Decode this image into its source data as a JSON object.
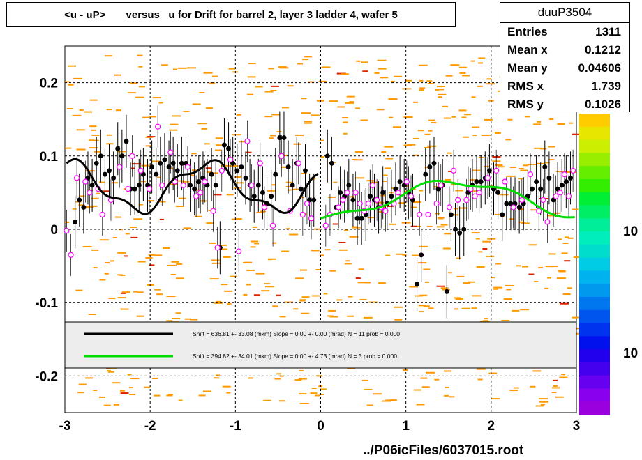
{
  "title": "<u - uP>       versus   u for Drift for barrel 2, layer 3 ladder 4, wafer 5",
  "stats": {
    "name": "duuP3504",
    "rows": [
      {
        "label": "Entries",
        "value": "1311"
      },
      {
        "label": "Mean x",
        "value": "0.1212"
      },
      {
        "label": "Mean y",
        "value": "0.04606"
      },
      {
        "label": "RMS x",
        "value": "1.739"
      },
      {
        "label": "RMS y",
        "value": "0.1026"
      }
    ]
  },
  "footer": "../P06icFiles/6037015.root",
  "legend": [
    {
      "color": "#000000",
      "text": "Shift =   636.81 +- 33.08 (mkm) Slope =     0.00 +- 0.00 (mrad)  N = 11 prob = 0.000"
    },
    {
      "color": "#00dd00",
      "text": "Shift =   394.82 +- 34.01 (mkm) Slope =     0.00 +- 4.73 (mrad)  N = 3 prob = 0.000"
    }
  ],
  "palette_labels": [
    "10",
    "10"
  ],
  "colors": {
    "hist": "#ff9900",
    "profile": "#000000",
    "profile_open": "#ff00ff",
    "fit1": "#000000",
    "fit2": "#00dd00"
  },
  "chart_data": {
    "type": "scatter",
    "xlim": [
      -3,
      3
    ],
    "ylim": [
      -0.25,
      0.25
    ],
    "x_ticks": [
      -3,
      -2,
      -1,
      0,
      1,
      2,
      3
    ],
    "y_ticks": [
      -0.2,
      -0.1,
      0,
      0.1,
      0.2
    ],
    "grid": true,
    "series": [
      {
        "marker": "filled-circle",
        "x": [
          -2.88,
          -2.83,
          -2.78,
          -2.73,
          -2.68,
          -2.63,
          -2.58,
          -2.53,
          -2.48,
          -2.43,
          -2.38,
          -2.33,
          -2.28,
          -2.23,
          -2.18,
          -2.13,
          -2.08,
          -2.03,
          -1.98,
          -1.93,
          -1.88,
          -1.83,
          -1.78,
          -1.73,
          -1.68,
          -1.63,
          -1.58,
          -1.53,
          -1.48,
          -1.43,
          -1.38,
          -1.33,
          -1.28,
          -1.23,
          -1.18,
          -1.13,
          -1.08,
          -1.03,
          -0.98,
          -0.93,
          -0.88,
          -0.83,
          -0.78,
          -0.73,
          -0.68,
          -0.63,
          -0.58,
          -0.53,
          -0.48,
          -0.43,
          -0.38,
          -0.33,
          -0.28,
          -0.23,
          -0.18,
          -0.13,
          -0.08,
          0.08,
          0.13,
          0.18,
          0.23,
          0.28,
          0.33,
          0.38,
          0.43,
          0.48,
          0.53,
          0.58,
          0.63,
          0.68,
          0.73,
          0.78,
          0.83,
          0.88,
          0.93,
          0.98,
          1.03,
          1.08,
          1.13,
          1.18,
          1.23,
          1.28,
          1.33,
          1.38,
          1.43,
          1.48,
          1.53,
          1.58,
          1.63,
          1.68,
          1.73,
          1.78,
          1.83,
          1.88,
          1.93,
          1.98,
          2.03,
          2.08,
          2.13,
          2.18,
          2.23,
          2.28,
          2.33,
          2.38,
          2.43,
          2.48,
          2.53,
          2.58,
          2.63,
          2.68,
          2.73,
          2.78,
          2.83,
          2.88,
          2.93
        ],
        "y": [
          0.01,
          0.04,
          0.03,
          0.07,
          0.06,
          0.09,
          0.1,
          0.075,
          0.08,
          0.07,
          0.11,
          0.1,
          0.12,
          0.055,
          0.055,
          0.06,
          0.075,
          0.06,
          0.085,
          0.075,
          0.09,
          0.095,
          0.085,
          0.09,
          0.08,
          0.09,
          0.09,
          0.06,
          0.055,
          0.065,
          0.07,
          0.06,
          0.075,
          0.06,
          -0.025,
          0.115,
          0.11,
          0.09,
          0.08,
          0.085,
          0.07,
          0.06,
          0.045,
          0.06,
          0.05,
          0.035,
          0.045,
          0.075,
          0.125,
          0.125,
          0.085,
          0.06,
          0.09,
          0.055,
          0.08,
          0.04,
          0.04,
          0.1,
          0.09,
          0.03,
          0.05,
          0.045,
          0.06,
          0.04,
          0.015,
          0.015,
          0.02,
          0.045,
          0.04,
          0.03,
          0.05,
          0.035,
          0.045,
          0.055,
          0.065,
          0.06,
          0.05,
          0.04,
          -0.075,
          -0.035,
          0.075,
          0.085,
          0.09,
          0.055,
          0.06,
          -0.085,
          0.02,
          0.0,
          -0.005,
          0.0,
          0.05,
          0.06,
          0.065,
          0.065,
          0.07,
          0.08,
          0.055,
          0.05,
          0.02,
          0.035,
          0.035,
          0.035,
          0.03,
          0.035,
          0.045,
          0.055,
          0.065,
          0.055,
          0.085,
          0.07,
          0.04,
          0.055,
          0.06,
          0.065,
          0.07
        ]
      },
      {
        "marker": "open-circle",
        "x": [
          -2.98,
          -2.93,
          -2.86,
          -2.76,
          -2.71,
          -2.61,
          -2.56,
          -2.46,
          -2.36,
          -2.26,
          -2.21,
          -2.11,
          -2.01,
          -1.91,
          -1.86,
          -1.76,
          -1.71,
          -1.61,
          -1.56,
          -1.46,
          -1.41,
          -1.36,
          -1.26,
          -1.21,
          -1.16,
          -1.06,
          -0.96,
          -0.86,
          -0.81,
          -0.71,
          -0.66,
          -0.56,
          -0.46,
          -0.36,
          -0.26,
          -0.21,
          -0.16,
          -0.11,
          0.06,
          0.11,
          0.21,
          0.26,
          0.31,
          0.41,
          0.46,
          0.51,
          0.56,
          0.61,
          0.66,
          0.71,
          0.76,
          0.86,
          0.91,
          1.01,
          1.06,
          1.16,
          1.26,
          1.36,
          1.41,
          1.51,
          1.56,
          1.61,
          1.71,
          1.76,
          1.81,
          1.86,
          1.96,
          2.06,
          2.16,
          2.26,
          2.36,
          2.46,
          2.56,
          2.61,
          2.66,
          2.76,
          2.81,
          2.86,
          2.91,
          2.96
        ],
        "y": [
          -0.002,
          -0.035,
          0.07,
          0.065,
          0.05,
          0.055,
          0.02,
          0.04,
          0.085,
          0.055,
          0.1,
          0.08,
          0.055,
          0.14,
          0.06,
          0.105,
          0.065,
          0.06,
          0.085,
          0.045,
          0.05,
          0.065,
          0.025,
          -0.025,
          0.08,
          0.095,
          -0.03,
          0.12,
          0.06,
          0.09,
          0.03,
          0.005,
          0.1,
          0.025,
          0.09,
          0.02,
          0.035,
          0.015,
          0.005,
          0.02,
          0.03,
          0.04,
          0.05,
          0.05,
          0.035,
          0.025,
          0.035,
          0.06,
          0.04,
          0.03,
          0.025,
          0.035,
          0.05,
          0.065,
          0.045,
          0.02,
          0.02,
          0.035,
          0.06,
          0.03,
          0.08,
          0.04,
          0.04,
          0.055,
          0.045,
          0.05,
          0.07,
          0.08,
          0.065,
          0.03,
          0.04,
          0.075,
          0.025,
          0.04,
          0.01,
          0.045,
          0.05,
          0.075,
          0.045,
          0.08
        ]
      }
    ],
    "fits": [
      {
        "x_range": [
          -2.98,
          -0.03
        ],
        "equation": "0.058 + 0.032*sin(2*pi*(x+2.98)/1.62 + 1.5) + 0.008*sin(2*pi*(x+2.98)/0.55)"
      },
      {
        "x_range": [
          0.0,
          2.98
        ],
        "equation": "0.04 - 0.025*cos(2*pi*x/3.2)*1.0 + 0.005*sin(2*pi*x)"
      }
    ]
  }
}
